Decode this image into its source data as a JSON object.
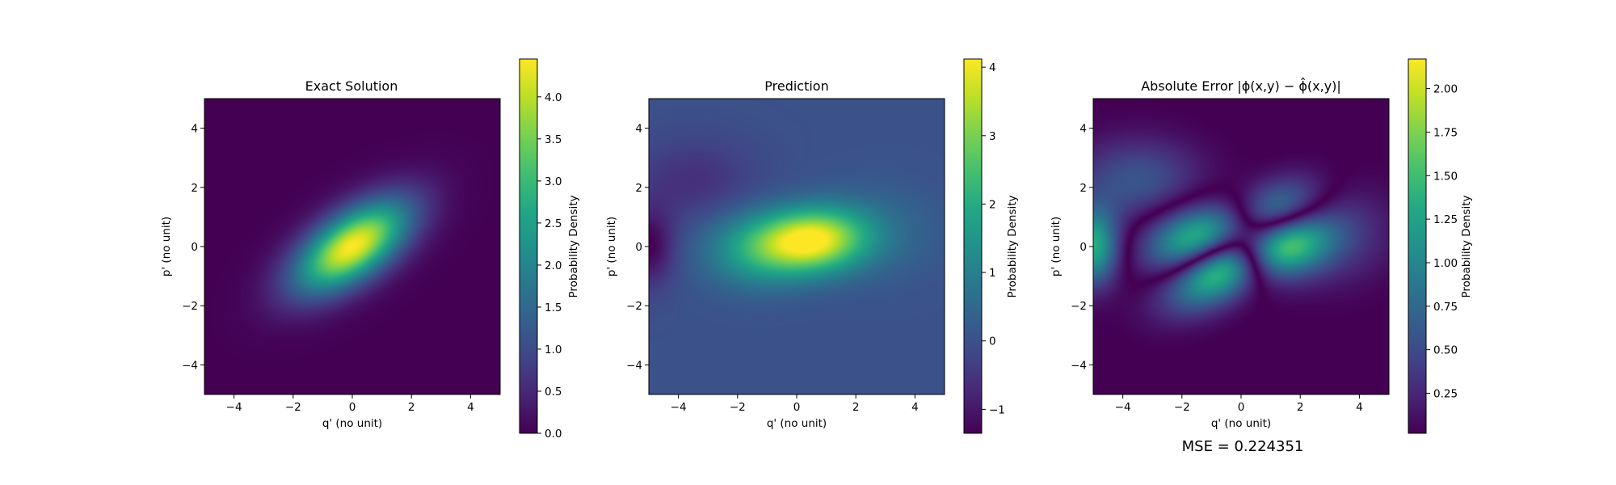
{
  "chart_data": [
    {
      "type": "heatmap",
      "title": "Exact Solution",
      "xlabel": "q' (no unit)",
      "ylabel": "p' (no unit)",
      "xlim": [
        -5,
        5
      ],
      "ylim": [
        -5,
        5
      ],
      "xticks": [
        "−4",
        "−2",
        "0",
        "2",
        "4"
      ],
      "yticks": [
        "−4",
        "−2",
        "0",
        "2",
        "4"
      ],
      "colormap": "viridis",
      "colorbar": {
        "label": "Probability Density",
        "range": [
          0,
          4.45
        ],
        "ticks": [
          "0.0",
          "0.5",
          "1.0",
          "1.5",
          "2.0",
          "2.5",
          "3.0",
          "3.5",
          "4.0"
        ]
      },
      "features": [
        {
          "kind": "gaussian",
          "x": 0,
          "y": 0,
          "amp": 4.45,
          "sx": 1.55,
          "sy": 0.75,
          "angle_deg": 35
        }
      ]
    },
    {
      "type": "heatmap",
      "title": "Prediction",
      "xlabel": "q' (no unit)",
      "ylabel": "p' (no unit)",
      "xlim": [
        -5,
        5
      ],
      "ylim": [
        -5,
        5
      ],
      "xticks": [
        "−4",
        "−2",
        "0",
        "2",
        "4"
      ],
      "yticks": [
        "−4",
        "−2",
        "0",
        "2",
        "4"
      ],
      "colormap": "viridis",
      "colorbar": {
        "label": "Probability Density",
        "range": [
          -1.35,
          4.12
        ],
        "ticks": [
          "−1",
          "0",
          "1",
          "2",
          "3",
          "4"
        ]
      },
      "features": [
        {
          "kind": "background",
          "value": 0
        },
        {
          "kind": "gaussian",
          "x": 0.5,
          "y": 0.2,
          "amp": 4.1,
          "sx": 1.3,
          "sy": 0.75,
          "angle_deg": 5
        },
        {
          "kind": "gaussian",
          "x": -1.5,
          "y": -0.1,
          "amp": 1.4,
          "sx": 1.2,
          "sy": 0.9,
          "angle_deg": 0
        },
        {
          "kind": "gaussian",
          "x": -5.0,
          "y": 0.0,
          "amp": -1.35,
          "sx": 0.6,
          "sy": 0.9,
          "angle_deg": 0
        },
        {
          "kind": "gaussian",
          "x": -3.5,
          "y": 2.2,
          "amp": -0.6,
          "sx": 1.5,
          "sy": 1.0,
          "angle_deg": 0
        },
        {
          "kind": "gaussian",
          "x": 3.0,
          "y": 0.5,
          "amp": 0.4,
          "sx": 1.5,
          "sy": 1.2,
          "angle_deg": 0
        }
      ]
    },
    {
      "type": "heatmap",
      "title": "Absolute Error |ϕ(x,y) − ϕ̂(x,y)|",
      "xlabel": "q' (no unit)",
      "ylabel": "p' (no unit)",
      "xlim": [
        -5,
        5
      ],
      "ylim": [
        -5,
        5
      ],
      "xticks": [
        "−4",
        "−2",
        "0",
        "2",
        "4"
      ],
      "yticks": [
        "−4",
        "−2",
        "0",
        "2",
        "4"
      ],
      "colormap": "viridis",
      "colorbar": {
        "label": "Probability Density",
        "range": [
          0.02,
          2.17
        ],
        "ticks": [
          "0.25",
          "0.50",
          "0.75",
          "1.00",
          "1.25",
          "1.50",
          "1.75",
          "2.00"
        ]
      },
      "features": [
        {
          "kind": "absolute-difference",
          "of": [
            "Exact Solution",
            "Prediction"
          ]
        }
      ],
      "annotation": "MSE = 0.224351"
    }
  ]
}
